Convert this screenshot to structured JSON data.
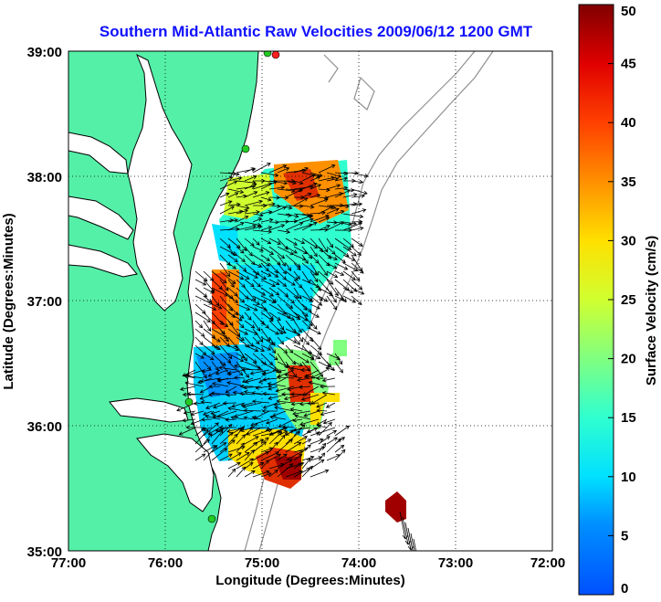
{
  "title": "Southern Mid-Atlantic Raw Velocities 2009/06/12 1200 GMT",
  "x_axis": {
    "label": "Longitude (Degrees:Minutes)",
    "ticks": [
      "77:00",
      "76:00",
      "75:00",
      "74:00",
      "73:00",
      "72:00"
    ]
  },
  "y_axis": {
    "label": "Latitude (Degrees:Minutes)",
    "ticks": [
      "39:00",
      "38:00",
      "37:00",
      "36:00",
      "35:00"
    ]
  },
  "colorbar": {
    "label": "Surface Velocity (cm/s)",
    "ticks": [
      "0",
      "5",
      "10",
      "15",
      "20",
      "25",
      "30",
      "35",
      "40",
      "45",
      "50"
    ],
    "range_cm_s": [
      0,
      50
    ],
    "colormap": "jet"
  },
  "map": {
    "lon_range_deg_west": [
      77,
      72
    ],
    "lat_range_deg_north": [
      35,
      39
    ],
    "grid": "dotted",
    "land_color": "#55f0a8",
    "coast_color": "#000000",
    "bathymetry_color": "#909090",
    "station_color": "#22cc22"
  }
}
